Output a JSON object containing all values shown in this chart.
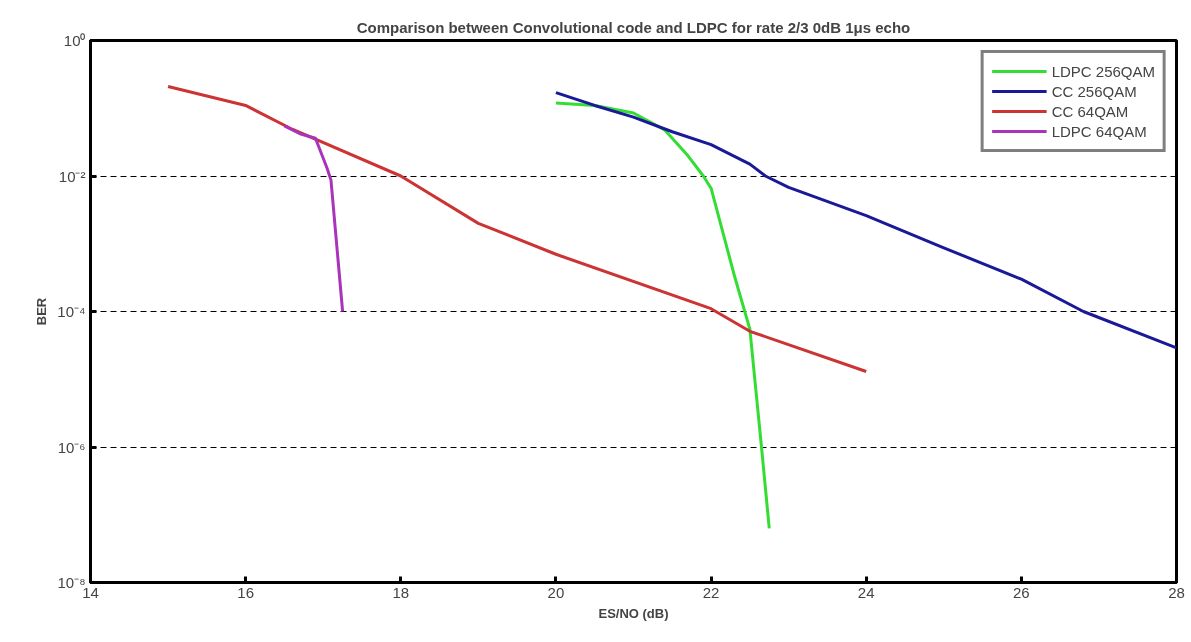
{
  "chart_data": {
    "type": "line",
    "title": "Comparison between Convolutional code and LDPC for rate 2/3 0dB 1μs echo",
    "xlabel": "ES/NO (dB)",
    "ylabel": "BER",
    "log": "y",
    "grid": "y",
    "legend": "top right",
    "line_style": "solid",
    "marker": "none",
    "xlim": [
      14,
      28
    ],
    "xticks": [
      14,
      16,
      18,
      20,
      22,
      24,
      26,
      28
    ],
    "ylim": [
      1e-08,
      1
    ],
    "yticks": [
      {
        "value": 1,
        "label": "10⁰"
      },
      {
        "value": 0.01,
        "label": "10⁻²"
      },
      {
        "value": 0.0001,
        "label": "10⁻⁴"
      },
      {
        "value": 1e-06,
        "label": "10⁻⁶"
      },
      {
        "value": 1e-08,
        "label": "10⁻⁸"
      }
    ],
    "series": [
      {
        "name": "LDPC 256QAM",
        "color": "#33dd33",
        "x": [
          20,
          20.5,
          21,
          21.4,
          21.7,
          21.9,
          22,
          22.3,
          22.5,
          22.65,
          22.75
        ],
        "values": [
          0.12,
          0.11,
          0.085,
          0.048,
          0.02,
          0.01,
          0.0066,
          0.00034,
          5.5e-05,
          1e-06,
          6.3e-08
        ]
      },
      {
        "name": "CC 256QAM",
        "color": "#1a1a99",
        "x": [
          20,
          20.5,
          21,
          21.5,
          22,
          22.5,
          22.7,
          23,
          24,
          25,
          26,
          26.8,
          28
        ],
        "values": [
          0.17,
          0.11,
          0.074,
          0.045,
          0.029,
          0.015,
          0.01,
          0.0068,
          0.0026,
          0.00087,
          0.0003,
          0.0001,
          2.9e-05
        ]
      },
      {
        "name": "CC 64QAM",
        "color": "#cc3333",
        "x": [
          15,
          16,
          16.6,
          18,
          19,
          20,
          22,
          22.5,
          24
        ],
        "values": [
          0.21,
          0.11,
          0.049,
          0.01,
          0.002,
          0.0007,
          0.00011,
          5.1e-05,
          1.3e-05
        ]
      },
      {
        "name": "LDPC 64QAM",
        "color": "#aa33bb",
        "x": [
          16.5,
          16.7,
          16.9,
          17.05,
          17.1,
          17.25
        ],
        "values": [
          0.055,
          0.042,
          0.036,
          0.013,
          0.0087,
          0.0001
        ]
      }
    ]
  }
}
